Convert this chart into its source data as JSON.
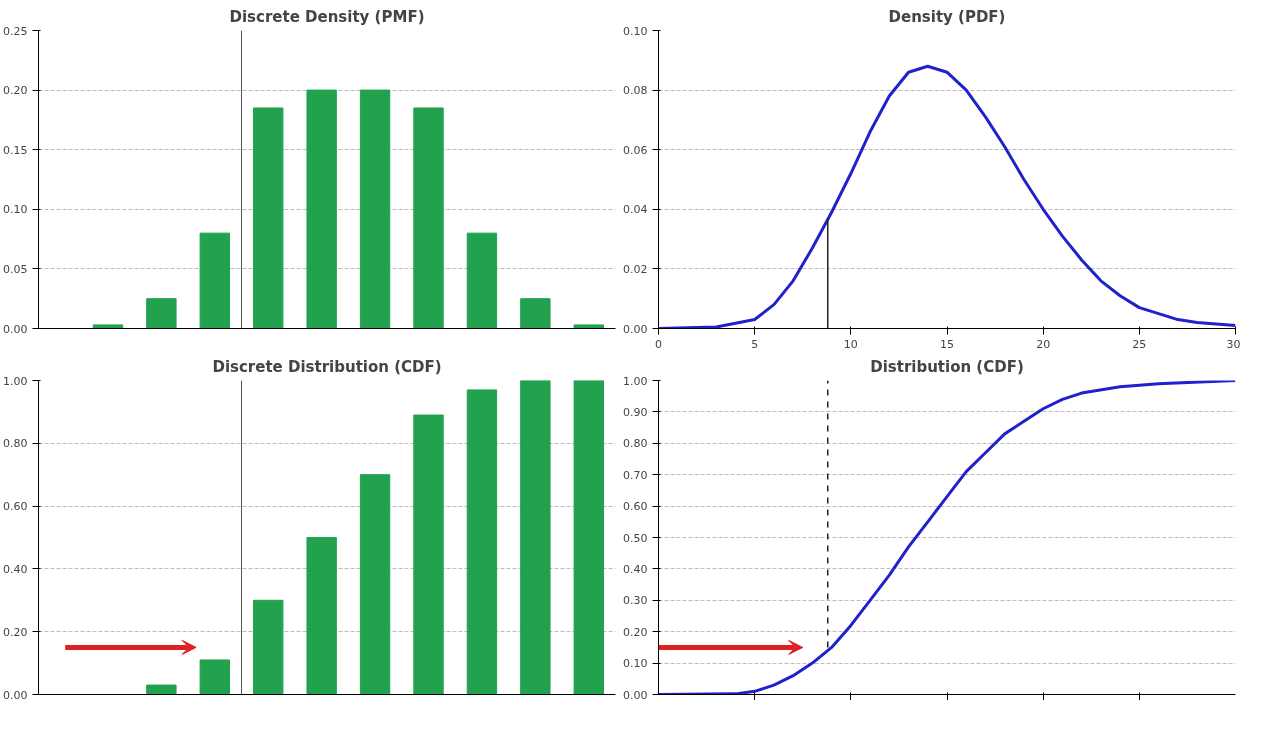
{
  "chart_data": [
    {
      "type": "bar",
      "title": "Discrete Density (PMF)",
      "categories": [
        null,
        null,
        null,
        null,
        null,
        null,
        null,
        null,
        null,
        null
      ],
      "values": [
        0.003,
        0.025,
        0.08,
        0.185,
        0.2,
        0.2,
        0.185,
        0.08,
        0.025,
        0.003
      ],
      "color": "#22a14f",
      "ylim": [
        0,
        0.25
      ],
      "yticks": [
        {
          "value": 0,
          "label": "0.00"
        },
        {
          "value": 0.05,
          "label": "0.05"
        },
        {
          "value": 0.1,
          "label": "0.10"
        },
        {
          "value": 0.15,
          "label": "0.15"
        },
        {
          "value": 0.2,
          "label": "0.20"
        },
        {
          "value": 0.25,
          "label": "0.25"
        }
      ],
      "grid": "y",
      "tick_labels": "y"
    },
    {
      "type": "line",
      "title": "Density (PDF)",
      "series": [
        {
          "color": "#2020cc",
          "x": [
            0,
            3,
            5,
            6,
            7,
            8,
            9,
            10,
            11,
            12,
            13,
            14,
            15,
            16,
            17,
            18,
            19,
            20,
            21,
            22,
            23,
            24,
            25,
            26,
            27,
            28,
            30
          ],
          "values": [
            0,
            0.0005,
            0.003,
            0.008,
            0.016,
            0.027,
            0.039,
            0.052,
            0.066,
            0.078,
            0.086,
            0.088,
            0.086,
            0.08,
            0.071,
            0.061,
            0.05,
            0.04,
            0.031,
            0.023,
            0.016,
            0.011,
            0.007,
            0.005,
            0.003,
            0.002,
            0.001
          ]
        },
        {
          "color": "#222222",
          "x": [
            8.8,
            8.8
          ],
          "values": [
            0,
            0.037
          ],
          "line_style": "solid"
        }
      ],
      "xlim": [
        0,
        30
      ],
      "xticks": [
        0,
        5,
        10,
        15,
        20,
        25,
        30
      ],
      "ylim": [
        0,
        0.1
      ],
      "yticks": [
        {
          "value": 0,
          "label": "0.00"
        },
        {
          "value": 0.02,
          "label": "0.02"
        },
        {
          "value": 0.04,
          "label": "0.04"
        },
        {
          "value": 0.06,
          "label": "0.06"
        },
        {
          "value": 0.08,
          "label": "0.08"
        },
        {
          "value": 0.1,
          "label": "0.10"
        }
      ],
      "grid": "y"
    },
    {
      "type": "bar",
      "title": "Discrete Distribution (CDF)",
      "categories": [
        null,
        null,
        null,
        null,
        null,
        null,
        null,
        null,
        null,
        null
      ],
      "values": [
        0.0,
        0.03,
        0.11,
        0.3,
        0.5,
        0.7,
        0.89,
        0.97,
        1.0,
        1.0
      ],
      "color": "#22a14f",
      "ylim": [
        0,
        1
      ],
      "yticks": [
        {
          "value": 0,
          "label": "0.00"
        },
        {
          "value": 0.2,
          "label": "0.20"
        },
        {
          "value": 0.4,
          "label": "0.40"
        },
        {
          "value": 0.6,
          "label": "0.60"
        },
        {
          "value": 0.8,
          "label": "0.80"
        },
        {
          "value": 1,
          "label": "1.00"
        }
      ],
      "grid": "y",
      "tick_labels": "y"
    },
    {
      "type": "line",
      "title": "Distribution (CDF)",
      "series": [
        {
          "color": "#2020cc",
          "x": [
            0,
            4,
            5,
            6,
            7,
            8,
            9,
            10,
            11,
            12,
            13,
            14,
            15,
            16,
            17,
            18,
            19,
            20,
            21,
            22,
            24,
            26,
            30
          ],
          "values": [
            0,
            0.002,
            0.01,
            0.03,
            0.06,
            0.1,
            0.15,
            0.22,
            0.3,
            0.38,
            0.47,
            0.55,
            0.63,
            0.71,
            0.77,
            0.83,
            0.87,
            0.91,
            0.94,
            0.96,
            0.98,
            0.99,
            1.0
          ]
        },
        {
          "color": "#222222",
          "x": [
            8.8,
            8.8
          ],
          "values": [
            0.15,
            1.0
          ],
          "line_style": "dashed"
        }
      ],
      "xlim": [
        0,
        30
      ],
      "xticks": [
        {
          "value": 5,
          "label": null
        },
        {
          "value": 10,
          "label": null
        },
        {
          "value": 15,
          "label": null
        },
        {
          "value": 20,
          "label": null
        },
        {
          "value": 25,
          "label": null
        }
      ],
      "ylim": [
        0,
        1
      ],
      "yticks": [
        {
          "value": 0,
          "label": "0.00"
        },
        {
          "value": 0.1,
          "label": "0.10"
        },
        {
          "value": 0.2,
          "label": "0.20"
        },
        {
          "value": 0.3,
          "label": "0.30"
        },
        {
          "value": 0.4,
          "label": "0.40"
        },
        {
          "value": 0.5,
          "label": "0.50"
        },
        {
          "value": 0.6,
          "label": "0.60"
        },
        {
          "value": 0.7,
          "label": "0.70"
        },
        {
          "value": 0.8,
          "label": "0.80"
        },
        {
          "value": 0.9,
          "label": "0.90"
        },
        {
          "value": 1,
          "label": "1.00"
        }
      ],
      "grid": "y",
      "tick_labels": "y"
    }
  ]
}
